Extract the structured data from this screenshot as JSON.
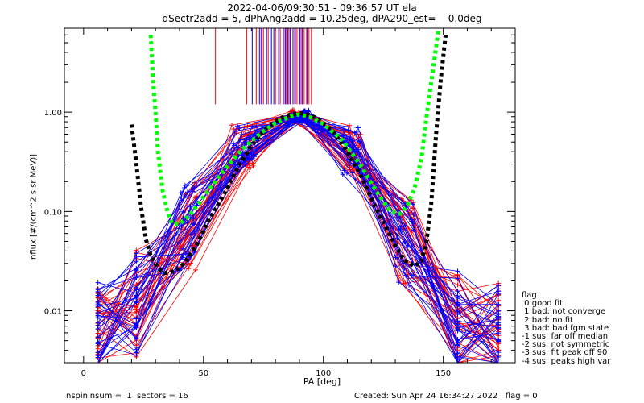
{
  "header": {
    "title_line1": "2022-04-06/09:30:51 - 09:36:57 UT ela",
    "title_line2": "dSectr2add = 5, dPhAng2add = 10.25deg, dPA290_est=    0.0deg"
  },
  "footer": {
    "left": "nspininsum =  1  sectors = 16",
    "right": "Created: Sun Apr 24 16:34:27 2022   flag = 0"
  },
  "legend": {
    "title": "flag",
    "items": [
      " 0 good fit",
      " 1 bad: not converge",
      " 2 bad: no fit",
      " 3 bad: bad fgm state",
      "-1 sus: far off median",
      "-2 sus: not symmetric",
      "-3 sus: fit peak off 90",
      "-4 sus: peaks high var"
    ]
  },
  "chart_data": {
    "type": "line",
    "xlabel": "PA [deg]",
    "ylabel": "nflux [#/(cm^2 s sr MeV)]",
    "xlim": [
      -8,
      180
    ],
    "ylim": [
      0.003,
      7.0
    ],
    "yscale": "log",
    "x_ticks": [
      0,
      50,
      100,
      150
    ],
    "y_ticks": [
      0.01,
      0.1,
      1.0
    ],
    "y_tick_labels": [
      "0.01",
      "0.10",
      "1.00"
    ],
    "colors": {
      "red_series": "#ff0000",
      "blue_series": "#0000ff",
      "black_fit": "#000000",
      "green_fit": "#00ff00"
    },
    "pitch_angle_bins": [
      6,
      22,
      44,
      67,
      90,
      112,
      134,
      156,
      173
    ],
    "black_dotted_fit": {
      "x": [
        20,
        22,
        24,
        26,
        28,
        31,
        34,
        38,
        42,
        47,
        52,
        58,
        64,
        70,
        76,
        82,
        86,
        90,
        94,
        98,
        104,
        110,
        116,
        121,
        126,
        130,
        134,
        138,
        141,
        143,
        145,
        147,
        149,
        151
      ],
      "y": [
        0.75,
        0.3,
        0.11,
        0.052,
        0.036,
        0.027,
        0.024,
        0.025,
        0.03,
        0.045,
        0.08,
        0.14,
        0.27,
        0.46,
        0.68,
        0.87,
        0.94,
        0.98,
        0.94,
        0.85,
        0.64,
        0.4,
        0.22,
        0.12,
        0.07,
        0.045,
        0.032,
        0.028,
        0.032,
        0.05,
        0.12,
        0.6,
        2.2,
        6.0
      ]
    },
    "green_dotted_fit": {
      "x": [
        28,
        29,
        30,
        31,
        33,
        35,
        37,
        40,
        44,
        50,
        58,
        66,
        74,
        80,
        86,
        90,
        94,
        100,
        108,
        116,
        122,
        128,
        132,
        135,
        138,
        141,
        143,
        145,
        147,
        148
      ],
      "y": [
        6.0,
        2.0,
        1.0,
        0.4,
        0.16,
        0.1,
        0.075,
        0.075,
        0.09,
        0.14,
        0.25,
        0.42,
        0.62,
        0.78,
        0.9,
        0.95,
        0.9,
        0.76,
        0.52,
        0.28,
        0.16,
        0.1,
        0.095,
        0.115,
        0.17,
        0.35,
        0.9,
        2.0,
        4.5,
        7.0
      ]
    },
    "red_markers_top_x": [
      55,
      68,
      72,
      74,
      75,
      77,
      80,
      82,
      84,
      85,
      86,
      88,
      89,
      90,
      91,
      92,
      93,
      94,
      95
    ],
    "blue_markers_top_x": [
      70,
      73,
      74,
      76,
      78,
      79,
      81,
      83,
      84,
      85,
      86,
      87,
      88,
      90,
      91,
      93
    ],
    "annotation_text": "flag = 0"
  }
}
